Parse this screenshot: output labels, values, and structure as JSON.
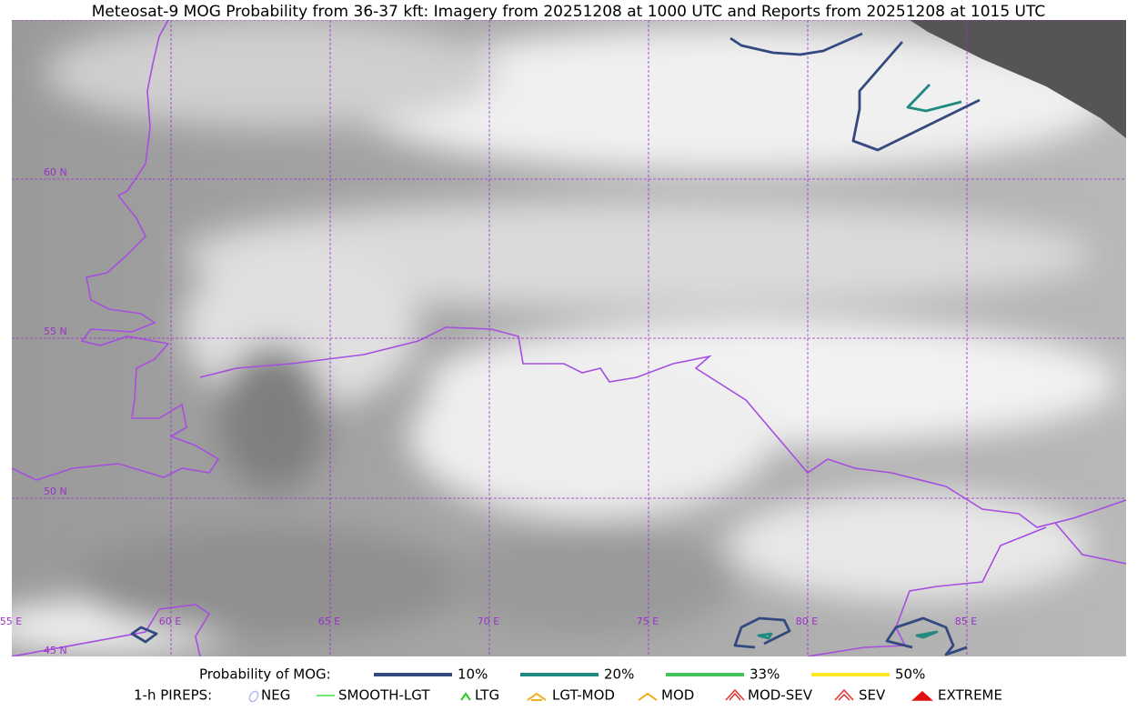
{
  "title": "Meteosat-9 MOG Probability from 36-37 kft: Imagery from 20251208 at 1000 UTC and Reports from 20251208 at 1015 UTC",
  "grid": {
    "lat_labels": [
      "60 N",
      "55 N",
      "50 N",
      "45 N"
    ],
    "lon_labels": [
      "55 E",
      "60 E",
      "65 E",
      "70 E",
      "75 E",
      "80 E",
      "85 E"
    ]
  },
  "legend": {
    "probability": {
      "label": "Probability of MOG:",
      "items": [
        {
          "label": "10%",
          "color": "#34497f"
        },
        {
          "label": "20%",
          "color": "#1f8a80"
        },
        {
          "label": "33%",
          "color": "#44c25a"
        },
        {
          "label": "50%",
          "color": "#fde725"
        }
      ]
    },
    "pireps": {
      "label": "1-h PIREPS:",
      "items": [
        "NEG",
        "SMOOTH-LGT",
        "LTG",
        "LGT-MOD",
        "MOD",
        "MOD-SEV",
        "SEV",
        "EXTREME"
      ]
    }
  }
}
